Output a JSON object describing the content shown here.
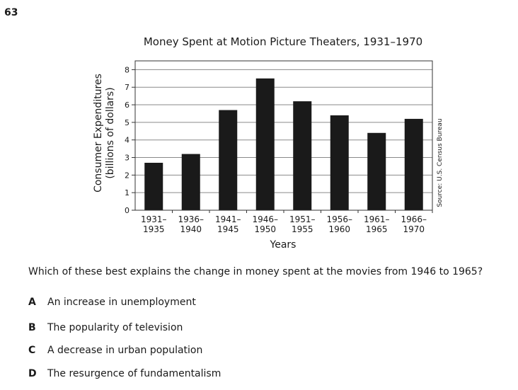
{
  "question_number": "63",
  "chart_data": {
    "type": "bar",
    "title": "Money Spent at Motion Picture Theaters, 1931–1970",
    "xlabel": "Years",
    "ylabel_line1": "Consumer Expenditures",
    "ylabel_line2": "(billions of dollars)",
    "source": "Source: U.S. Census Bureau",
    "categories": [
      [
        "1931–",
        "1935"
      ],
      [
        "1936–",
        "1940"
      ],
      [
        "1941–",
        "1945"
      ],
      [
        "1946–",
        "1950"
      ],
      [
        "1951–",
        "1955"
      ],
      [
        "1956–",
        "1960"
      ],
      [
        "1961–",
        "1965"
      ],
      [
        "1966–",
        "1970"
      ]
    ],
    "values": [
      2.7,
      3.2,
      5.7,
      7.5,
      6.2,
      5.4,
      4.4,
      5.2
    ],
    "ylim": [
      0,
      8.5
    ],
    "yticks": [
      0,
      1,
      2,
      3,
      4,
      5,
      6,
      7,
      8
    ],
    "grid": true,
    "bar_color": "#1a1a1a"
  },
  "question": "Which of these best explains the change in money spent at the movies from 1946 to 1965?",
  "choices": [
    {
      "letter": "A",
      "text": "An increase in unemployment"
    },
    {
      "letter": "B",
      "text": "The popularity of television"
    },
    {
      "letter": "C",
      "text": "A decrease in urban population"
    },
    {
      "letter": "D",
      "text": "The resurgence of fundamentalism"
    }
  ]
}
